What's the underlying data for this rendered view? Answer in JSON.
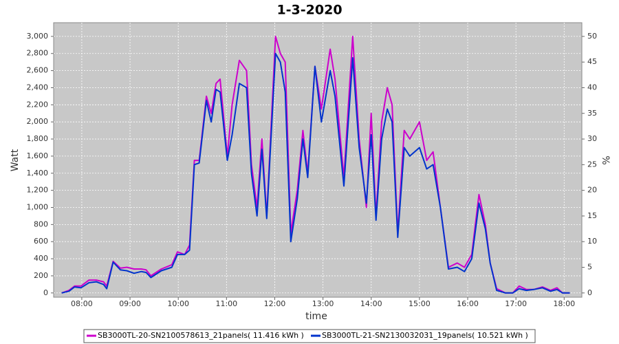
{
  "chart_data": {
    "type": "line",
    "title": "1-3-2020",
    "x_label": "time",
    "y_label": "Watt",
    "y2_label": "%",
    "x": [
      455,
      464,
      471,
      479,
      489,
      498,
      507,
      511,
      519,
      528,
      536,
      545,
      554,
      560,
      566,
      579,
      592,
      599,
      608,
      614,
      620,
      626,
      635,
      641,
      647,
      652,
      661,
      667,
      676,
      685,
      691,
      698,
      704,
      710,
      721,
      727,
      733,
      740,
      748,
      755,
      761,
      770,
      778,
      789,
      795,
      806,
      817,
      825,
      834,
      840,
      846,
      853,
      860,
      866,
      873,
      881,
      888,
      900,
      909,
      917,
      926,
      936,
      947,
      956,
      965,
      974,
      982,
      988,
      996,
      1007,
      1016,
      1024,
      1033,
      1042,
      1053,
      1063,
      1071,
      1078,
      1087
    ],
    "series": [
      {
        "name": "SB3000TL-20-SN2100578613_21panels( 11.416 kWh )",
        "color": "#cc00cc",
        "values": [
          0,
          30,
          80,
          80,
          150,
          150,
          130,
          80,
          370,
          290,
          300,
          280,
          280,
          270,
          200,
          280,
          330,
          480,
          450,
          560,
          1550,
          1550,
          2300,
          2100,
          2450,
          2500,
          1600,
          2200,
          2720,
          2600,
          1500,
          1000,
          1800,
          900,
          3000,
          2800,
          2700,
          700,
          1200,
          1900,
          1400,
          2650,
          2150,
          2850,
          2500,
          1350,
          3000,
          1800,
          1000,
          2100,
          900,
          2000,
          2400,
          2200,
          700,
          1900,
          1800,
          2000,
          1550,
          1650,
          1000,
          300,
          350,
          300,
          450,
          1150,
          800,
          350,
          50,
          0,
          0,
          80,
          40,
          40,
          70,
          30,
          60,
          0,
          0
        ]
      },
      {
        "name": "SB3000TL-21-SN2130032031_19panels( 10.521 kWh )",
        "color": "#0033cc",
        "values": [
          0,
          20,
          70,
          60,
          120,
          130,
          100,
          50,
          360,
          270,
          260,
          230,
          250,
          240,
          180,
          260,
          300,
          450,
          450,
          500,
          1500,
          1520,
          2250,
          2000,
          2380,
          2350,
          1550,
          1850,
          2450,
          2400,
          1400,
          900,
          1680,
          870,
          2800,
          2700,
          2350,
          600,
          1100,
          1800,
          1350,
          2650,
          2000,
          2600,
          2300,
          1250,
          2750,
          1700,
          1050,
          1850,
          850,
          1800,
          2150,
          2000,
          650,
          1700,
          1600,
          1700,
          1450,
          1500,
          1000,
          280,
          300,
          250,
          400,
          1050,
          750,
          350,
          30,
          0,
          0,
          50,
          30,
          40,
          60,
          20,
          40,
          0,
          0
        ]
      }
    ],
    "xlim": [
      445,
      1102
    ],
    "xticks": [
      {
        "value": 480,
        "label": "08:00"
      },
      {
        "value": 540,
        "label": "09:00"
      },
      {
        "value": 600,
        "label": "10:00"
      },
      {
        "value": 660,
        "label": "11:00"
      },
      {
        "value": 720,
        "label": "12:00"
      },
      {
        "value": 780,
        "label": "13:00"
      },
      {
        "value": 840,
        "label": "14:00"
      },
      {
        "value": 900,
        "label": "15:00"
      },
      {
        "value": 960,
        "label": "16:00"
      },
      {
        "value": 1020,
        "label": "17:00"
      },
      {
        "value": 1080,
        "label": "18:00"
      }
    ],
    "ylim": [
      -50,
      3160
    ],
    "yticks": [
      0,
      200,
      400,
      600,
      800,
      {
        "value": 1000,
        "label": "1,000"
      },
      {
        "value": 1200,
        "label": "1,200"
      },
      {
        "value": 1400,
        "label": "1,400"
      },
      {
        "value": 1600,
        "label": "1,600"
      },
      {
        "value": 1800,
        "label": "1,800"
      },
      {
        "value": 2000,
        "label": "2,000"
      },
      {
        "value": 2200,
        "label": "2,200"
      },
      {
        "value": 2400,
        "label": "2,400"
      },
      {
        "value": 2600,
        "label": "2,600"
      },
      {
        "value": 2800,
        "label": "2,800"
      },
      {
        "value": 3000,
        "label": "3,000"
      }
    ],
    "y2lim": [
      -0.83,
      52.67
    ],
    "y2ticks": [
      0,
      5,
      10,
      15,
      20,
      25,
      30,
      35,
      40,
      45,
      50
    ],
    "grid": true,
    "legend": "bottom"
  }
}
